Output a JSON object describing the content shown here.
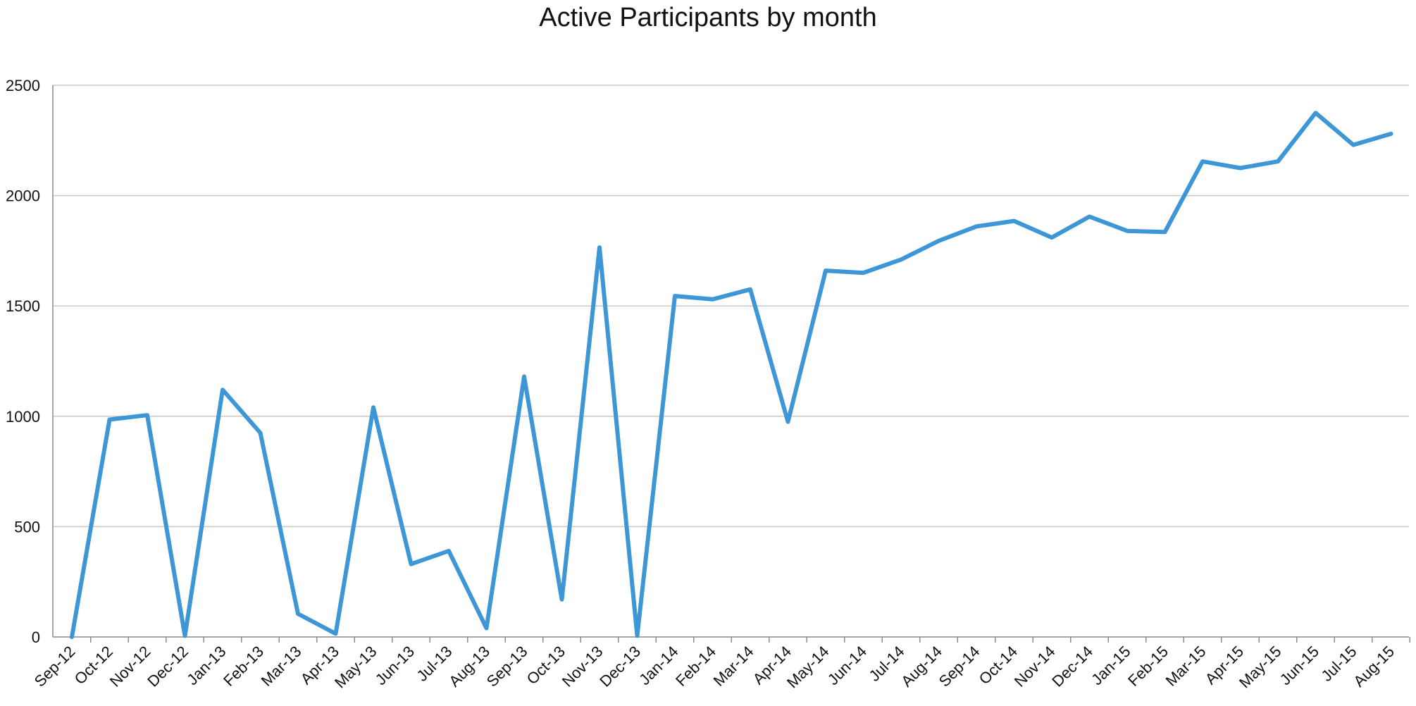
{
  "chart_data": {
    "type": "line",
    "title": "Active Participants by month",
    "xlabel": "",
    "ylabel": "",
    "ylim": [
      0,
      2500
    ],
    "yticks": [
      0,
      500,
      1000,
      1500,
      2000,
      2500
    ],
    "grid": true,
    "legend": "none",
    "line_color": "#3d96d6",
    "grid_color": "#c8c8c8",
    "categories": [
      "Sep-12",
      "Oct-12",
      "Nov-12",
      "Dec-12",
      "Jan-13",
      "Feb-13",
      "Mar-13",
      "Apr-13",
      "May-13",
      "Jun-13",
      "Jul-13",
      "Aug-13",
      "Sep-13",
      "Oct-13",
      "Nov-13",
      "Dec-13",
      "Jan-14",
      "Feb-14",
      "Mar-14",
      "Apr-14",
      "May-14",
      "Jun-14",
      "Jul-14",
      "Aug-14",
      "Sep-14",
      "Oct-14",
      "Nov-14",
      "Dec-14",
      "Jan-15",
      "Feb-15",
      "Mar-15",
      "Apr-15",
      "May-15",
      "Jun-15",
      "Jul-15",
      "Aug-15"
    ],
    "series": [
      {
        "values": [
          0,
          985,
          1005,
          5,
          1120,
          925,
          105,
          15,
          1040,
          330,
          390,
          40,
          1180,
          170,
          1765,
          5,
          1545,
          1530,
          1575,
          975,
          1660,
          1650,
          1710,
          1795,
          1860,
          1885,
          1810,
          1905,
          1840,
          1835,
          2155,
          2125,
          2155,
          2375,
          2230,
          2280
        ]
      }
    ]
  }
}
